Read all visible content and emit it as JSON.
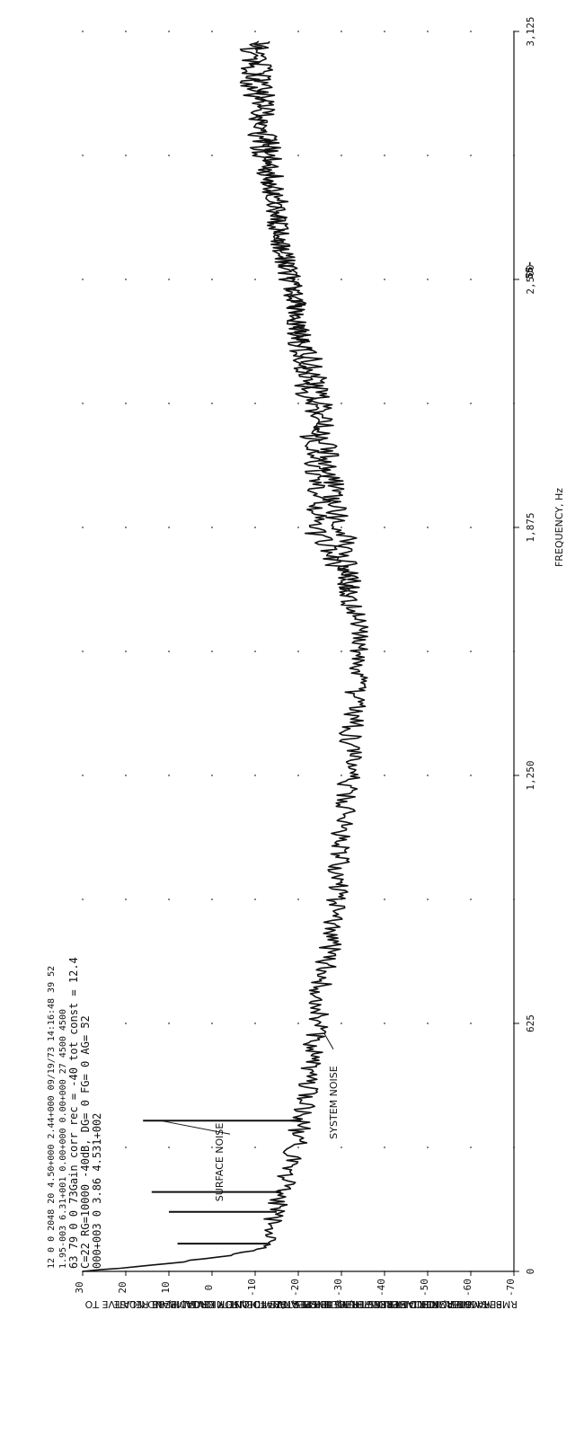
{
  "page_marker": "55-",
  "header_block": [
    "12  0  0  2048   20  4.50+000  2.44+000  09/19/73  14:16:48   39    52",
    "1.95-003  6.31+001  0.00+000  0.00+000        27   4500  4500",
    "63  79  0  0  73Gain corr      rec  = -40  tot const = 12.4",
    "C=22  RG=10000 -40dB, DG=        0  FG=  0  AG= 52",
    "000+003                          0  3.86         4.531+002"
  ],
  "chart_data": {
    "type": "line",
    "title": "",
    "xlabel": "FREQUENCY, Hz",
    "ylabel_lines": [
      "RMS MAGNETIC FIELD STRENGTH, H, dB RELATIVE TO ONE MICROAMPERE",
      "PER METER, FOR DISCRETE FREQUENCIES, OR",
      "RMS MAGNETIC-FIELD-STRENGTH SPECTRUM DENSITY LEVEL, H, dB RELATIVE TO",
      "ONE MICROAMPERE-PER-METER PER √2.44 Hz, FOR BROAD BAND NOISE"
    ],
    "xlim": [
      0,
      3125
    ],
    "ylim": [
      -70,
      30
    ],
    "x_ticks": [
      0,
      625,
      1250,
      1875,
      2500,
      3125
    ],
    "x_tick_labels": [
      "0",
      "625",
      "1,250",
      "1,875",
      "2,500",
      "3,125"
    ],
    "y_ticks": [
      30,
      20,
      10,
      0,
      -10,
      -20,
      -30,
      -40,
      -50,
      -60,
      -70
    ],
    "y_tick_labels": [
      "30",
      "20",
      "10",
      "0",
      "-10",
      "-20",
      "-30",
      "-40",
      "-50",
      "-60",
      "-70"
    ],
    "grid": "dotted",
    "annotations": [
      "SURFACE NOISE",
      "SYSTEM NOISE"
    ],
    "series": [
      {
        "color": "#111111",
        "x": [
          0,
          20,
          40,
          60,
          80,
          100,
          120,
          140,
          160,
          200,
          250,
          300,
          350,
          400,
          450,
          500,
          550,
          600,
          650,
          700,
          750,
          800,
          850,
          900,
          950,
          1000,
          1050,
          1100,
          1150,
          1200,
          1250,
          1300,
          1350,
          1400,
          1450,
          1500,
          1550,
          1600,
          1650,
          1700,
          1750,
          1800,
          1850,
          1875,
          1900,
          1950,
          2000,
          2050,
          2100,
          2150,
          2200,
          2250,
          2300,
          2350,
          2400,
          2450,
          2500,
          2550,
          2600,
          2650,
          2700,
          2750,
          2800,
          2850,
          2900,
          2950,
          3000,
          3050,
          3100
        ],
        "y": [
          30,
          10,
          -4,
          -12,
          -14,
          -13,
          -14,
          -15,
          -15,
          -16,
          -18,
          -19,
          -20,
          -21,
          -22,
          -22,
          -23,
          -24,
          -25,
          -25,
          -26,
          -27,
          -28,
          -28,
          -29,
          -29,
          -30,
          -30,
          -31,
          -31,
          -32,
          -32,
          -32,
          -33,
          -33,
          -34,
          -34,
          -34,
          -33,
          -32,
          -30,
          -28,
          -25,
          -23,
          -24,
          -25,
          -24,
          -24,
          -23,
          -23,
          -22,
          -21,
          -21,
          -20,
          -19,
          -19,
          -18,
          -17,
          -16,
          -15,
          -14,
          -13,
          -12,
          -11,
          -10,
          -10,
          -9,
          -9,
          -9
        ]
      },
      {
        "color": "#111111",
        "x": [
          1700,
          1750,
          1800,
          1850,
          1875,
          1900,
          1950,
          2000,
          2050,
          2100,
          2150,
          2200,
          2250,
          2300,
          2350,
          2400,
          2450,
          2500,
          2550,
          2600,
          2650,
          2700,
          2750,
          2800,
          2850,
          2900,
          2950,
          3000,
          3050,
          3100
        ],
        "y": [
          -32,
          -32,
          -31,
          -31,
          -30,
          -29,
          -28,
          -28,
          -27,
          -26,
          -26,
          -25,
          -24,
          -23,
          -21,
          -20,
          -19,
          -18,
          -17,
          -16,
          -15,
          -15,
          -14,
          -14,
          -13,
          -13,
          -12,
          -12,
          -11,
          -11
        ]
      }
    ],
    "spikes": [
      {
        "x": 150,
        "y": 10
      },
      {
        "x": 200,
        "y": 14
      },
      {
        "x": 380,
        "y": 16
      },
      {
        "x": 70,
        "y": 8
      }
    ]
  }
}
